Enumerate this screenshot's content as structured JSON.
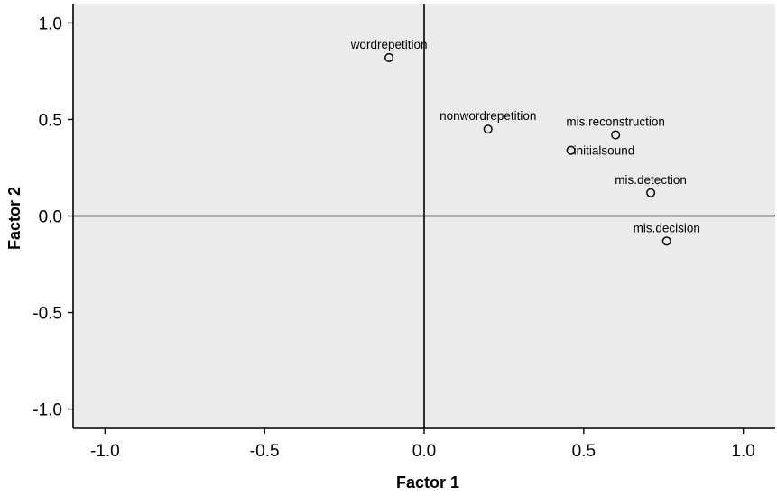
{
  "chart_data": {
    "type": "scatter",
    "title": "",
    "xlabel": "Factor 1",
    "ylabel": "Factor 2",
    "xlim": [
      -1.1,
      1.1
    ],
    "ylim": [
      -1.1,
      1.1
    ],
    "x_ticks": [
      -1.0,
      -0.5,
      0.0,
      0.5,
      1.0
    ],
    "y_ticks": [
      -1.0,
      -0.5,
      0.0,
      0.5,
      1.0
    ],
    "x_tick_labels": [
      "-1.0",
      "-0.5",
      "0.0",
      "0.5",
      "1.0"
    ],
    "y_tick_labels": [
      "-1.0",
      "-0.5",
      "0.0",
      "0.5",
      "1.0"
    ],
    "reference_lines": {
      "x": 0,
      "y": 0
    },
    "grid": false,
    "points": [
      {
        "label": "wordrepetition",
        "x": -0.11,
        "y": 0.82
      },
      {
        "label": "nonwordrepetition",
        "x": 0.2,
        "y": 0.45
      },
      {
        "label": "mis.reconstruction",
        "x": 0.6,
        "y": 0.42
      },
      {
        "label": "initialsound",
        "x": 0.46,
        "y": 0.34
      },
      {
        "label": "mis.detection",
        "x": 0.71,
        "y": 0.12
      },
      {
        "label": "mis.decision",
        "x": 0.76,
        "y": -0.13
      }
    ],
    "colors": {
      "plot_background": "#ebebeb",
      "marker": "#000000",
      "axis": "#000000"
    }
  }
}
